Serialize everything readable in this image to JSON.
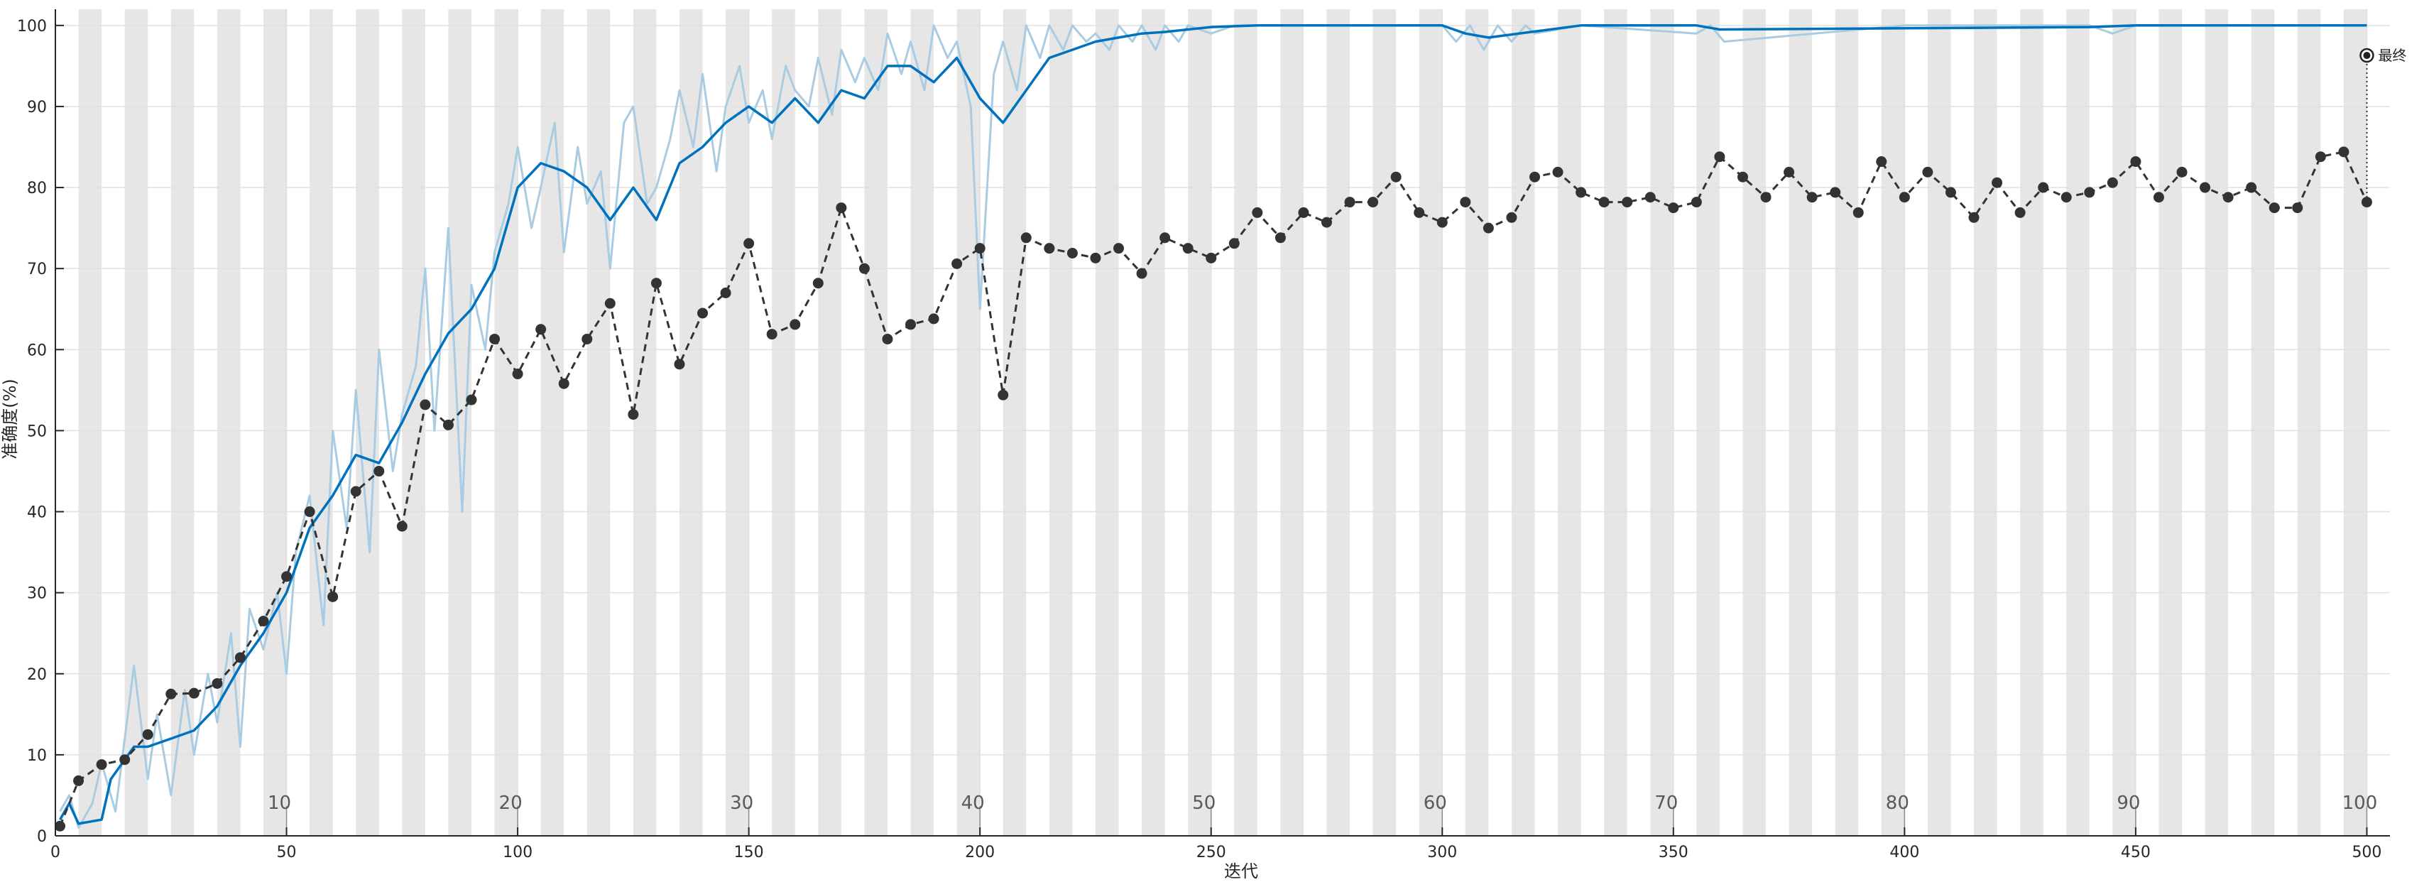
{
  "chart_data": {
    "type": "line",
    "xlabel": "迭代",
    "ylabel": "准确度(%)",
    "xlim": [
      0,
      505
    ],
    "ylim": [
      0,
      102
    ],
    "xticks": [
      0,
      50,
      100,
      150,
      200,
      250,
      300,
      350,
      400,
      450,
      500
    ],
    "yticks": [
      0,
      10,
      20,
      30,
      40,
      50,
      60,
      70,
      80,
      90,
      100
    ],
    "grid": true,
    "iterations_per_epoch": 5,
    "epochs": 100,
    "epoch_labels": [
      10,
      20,
      30,
      40,
      50,
      60,
      70,
      80,
      90,
      100
    ],
    "final_marker": {
      "label": "最终",
      "x": 500,
      "y": 96.3
    },
    "colors": {
      "smoothed": "#0072BD",
      "raw": "#A9CCE3",
      "validation": "#333333",
      "epoch_band": "#E6E6E6",
      "grid": "#E0E0E0"
    },
    "training_smoothed": {
      "x": [
        1,
        3,
        5,
        10,
        12,
        17,
        20,
        25,
        30,
        35,
        40,
        45,
        50,
        55,
        60,
        65,
        70,
        75,
        80,
        85,
        90,
        95,
        100,
        105,
        110,
        115,
        120,
        125,
        130,
        135,
        140,
        145,
        150,
        155,
        160,
        165,
        170,
        175,
        180,
        185,
        190,
        195,
        200,
        205,
        210,
        215,
        220,
        225,
        230,
        235,
        240,
        245,
        250,
        260,
        300,
        305,
        310,
        330,
        355,
        360,
        440,
        450,
        500
      ],
      "y": [
        2,
        4,
        1.5,
        2,
        7,
        11,
        11,
        12,
        13,
        16,
        21,
        25,
        30,
        38,
        42,
        47,
        46,
        51,
        57,
        62,
        65,
        70,
        80,
        83,
        82,
        80,
        76,
        80,
        76,
        83,
        85,
        88,
        90,
        88,
        91,
        88,
        92,
        91,
        95,
        95,
        93,
        96,
        91,
        88,
        92,
        96,
        97,
        98,
        98.5,
        99,
        99.2,
        99.5,
        99.8,
        100,
        100,
        99,
        98.5,
        100,
        100,
        99.5,
        99.8,
        100,
        100
      ]
    },
    "training_raw": {
      "x": [
        1,
        3,
        5,
        8,
        10,
        13,
        15,
        17,
        20,
        22,
        25,
        28,
        30,
        33,
        35,
        38,
        40,
        42,
        45,
        48,
        50,
        52,
        55,
        58,
        60,
        63,
        65,
        68,
        70,
        73,
        75,
        78,
        80,
        82,
        85,
        88,
        90,
        93,
        95,
        98,
        100,
        103,
        105,
        108,
        110,
        113,
        115,
        118,
        120,
        123,
        125,
        128,
        130,
        133,
        135,
        138,
        140,
        143,
        145,
        148,
        150,
        153,
        155,
        158,
        160,
        163,
        165,
        168,
        170,
        173,
        175,
        178,
        180,
        183,
        185,
        188,
        190,
        193,
        195,
        198,
        200,
        203,
        205,
        208,
        210,
        213,
        215,
        218,
        220,
        223,
        225,
        228,
        230,
        233,
        235,
        238,
        240,
        243,
        245,
        250,
        255,
        260,
        300,
        303,
        306,
        309,
        312,
        315,
        318,
        320,
        330,
        355,
        358,
        361,
        400,
        440,
        445,
        450,
        500
      ],
      "y": [
        3,
        5,
        1,
        4,
        9,
        3,
        12,
        21,
        7,
        15,
        5,
        18,
        10,
        20,
        14,
        25,
        11,
        28,
        23,
        30,
        20,
        35,
        42,
        26,
        50,
        38,
        55,
        35,
        60,
        45,
        52,
        58,
        70,
        50,
        75,
        40,
        68,
        60,
        72,
        78,
        85,
        75,
        80,
        88,
        72,
        85,
        78,
        82,
        70,
        88,
        90,
        78,
        80,
        86,
        92,
        85,
        94,
        82,
        90,
        95,
        88,
        92,
        86,
        95,
        92,
        90,
        96,
        89,
        97,
        93,
        96,
        92,
        99,
        94,
        98,
        92,
        100,
        96,
        98,
        90,
        65,
        94,
        98,
        92,
        100,
        96,
        100,
        97,
        100,
        98,
        99,
        97,
        100,
        98,
        100,
        97,
        100,
        98,
        100,
        99,
        100,
        100,
        100,
        98,
        100,
        97,
        100,
        98,
        100,
        99,
        100,
        99,
        100,
        98,
        100,
        100,
        99,
        100,
        100
      ]
    },
    "validation": {
      "x": [
        1,
        5,
        10,
        15,
        20,
        25,
        30,
        35,
        40,
        45,
        50,
        55,
        60,
        65,
        70,
        75,
        80,
        85,
        90,
        95,
        100,
        105,
        110,
        115,
        120,
        125,
        130,
        135,
        140,
        145,
        150,
        155,
        160,
        165,
        170,
        175,
        180,
        185,
        190,
        195,
        200,
        205,
        210,
        215,
        220,
        225,
        230,
        235,
        240,
        245,
        250,
        255,
        260,
        265,
        270,
        275,
        280,
        285,
        290,
        295,
        300,
        305,
        310,
        315,
        320,
        325,
        330,
        335,
        340,
        345,
        350,
        355,
        360,
        365,
        370,
        375,
        380,
        385,
        390,
        395,
        400,
        405,
        410,
        415,
        420,
        425,
        430,
        435,
        440,
        445,
        450,
        455,
        460,
        465,
        470,
        475,
        480,
        485,
        490,
        495,
        500
      ],
      "y": [
        1.2,
        6.8,
        8.8,
        9.4,
        12.5,
        17.5,
        17.6,
        18.8,
        22,
        26.5,
        32,
        40,
        29.5,
        42.5,
        45,
        38.2,
        53.2,
        50.7,
        53.8,
        61.3,
        57,
        62.5,
        55.8,
        61.3,
        65.7,
        52,
        68.2,
        58.2,
        64.5,
        67,
        73.1,
        61.9,
        63.1,
        68.2,
        77.5,
        70,
        61.3,
        63.1,
        63.8,
        70.6,
        72.5,
        54.4,
        73.8,
        72.5,
        71.9,
        71.3,
        72.5,
        69.4,
        73.8,
        72.5,
        71.3,
        73.1,
        76.9,
        73.8,
        76.9,
        75.7,
        78.2,
        78.2,
        81.3,
        76.9,
        75.7,
        78.2,
        75,
        76.3,
        81.3,
        81.9,
        79.4,
        78.2,
        78.2,
        78.8,
        77.5,
        78.2,
        83.8,
        81.3,
        78.8,
        81.9,
        78.8,
        79.4,
        76.9,
        83.2,
        78.8,
        81.9,
        79.4,
        76.3,
        80.6,
        76.9,
        80,
        78.8,
        79.4,
        80.6,
        83.2,
        78.8,
        81.9,
        80,
        78.8,
        80,
        77.5,
        77.5,
        83.8,
        84.4,
        78.2
      ]
    }
  }
}
